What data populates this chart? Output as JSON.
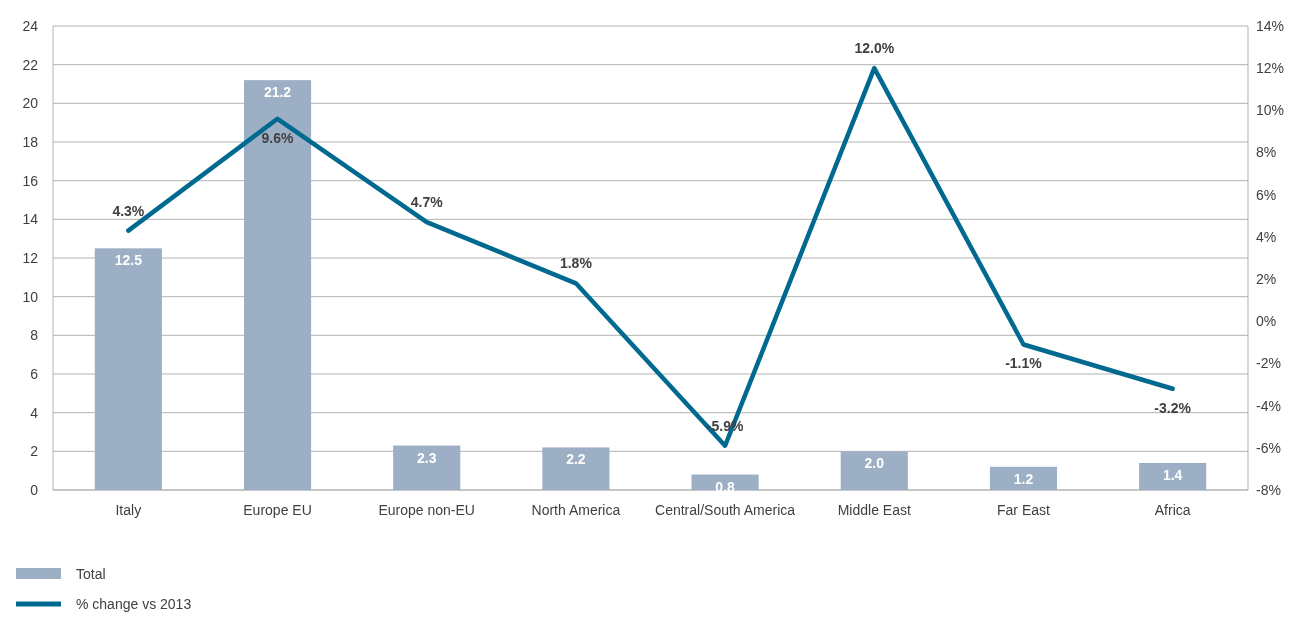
{
  "chart_data": {
    "type": "bar",
    "categories": [
      "Italy",
      "Europe EU",
      "Europe non-EU",
      "North America",
      "Central/South America",
      "Middle East",
      "Far East",
      "Africa"
    ],
    "series": [
      {
        "name": "Total",
        "color": "#9dafc5",
        "values": [
          12.5,
          21.2,
          2.3,
          2.2,
          0.8,
          2.0,
          1.2,
          1.4
        ],
        "value_labels": [
          "12.5",
          "21.2",
          "2.3",
          "2.2",
          "0.8",
          "2.0",
          "1.2",
          "1.4"
        ]
      },
      {
        "name": "% change vs 2013",
        "type": "line",
        "axis": "y2",
        "color": "#00698f",
        "values": [
          4.3,
          9.6,
          4.7,
          1.8,
          -5.9,
          12.0,
          -1.1,
          -3.2
        ],
        "value_labels": [
          "4.3%",
          "9.6%",
          "4.7%",
          "1.8%",
          "-5.9%",
          "12.0%",
          "-1.1%",
          "-3.2%"
        ]
      }
    ],
    "ylim": [
      0,
      24
    ],
    "yticks": [
      0,
      2,
      4,
      6,
      8,
      10,
      12,
      14,
      16,
      18,
      20,
      22,
      24
    ],
    "y2lim": [
      -8,
      14
    ],
    "y2ticks": [
      {
        "value": -8,
        "label": "-8%"
      },
      {
        "value": -6,
        "label": "-6%"
      },
      {
        "value": -4,
        "label": "-4%"
      },
      {
        "value": -2,
        "label": "-2%"
      },
      {
        "value": 0,
        "label": "0%"
      },
      {
        "value": 2,
        "label": "2%"
      },
      {
        "value": 4,
        "label": "4%"
      },
      {
        "value": 6,
        "label": "6%"
      },
      {
        "value": 8,
        "label": "8%"
      },
      {
        "value": 10,
        "label": "10%"
      },
      {
        "value": 12,
        "label": "12%"
      },
      {
        "value": 14,
        "label": "14%"
      }
    ],
    "grid": "y",
    "legend": "bottom left",
    "marker": "none",
    "line_style": "solid"
  }
}
